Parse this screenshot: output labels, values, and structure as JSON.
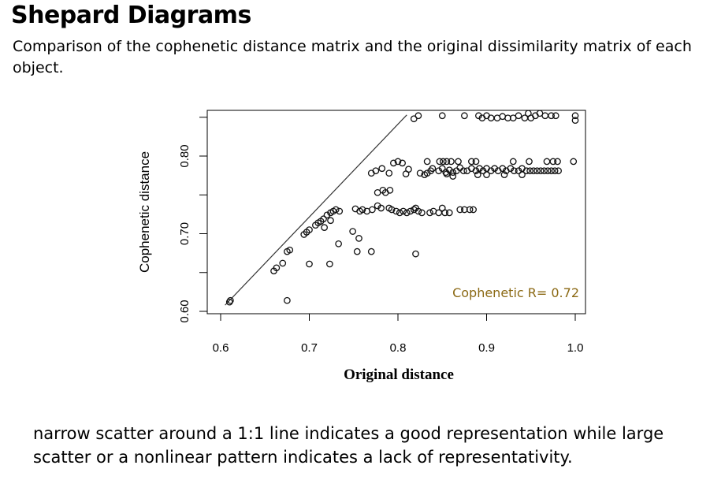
{
  "slide": {
    "title": "Shepard Diagrams",
    "subtitle": "Comparison of the cophenetic distance matrix and the original dissimilarity matrix of each object.",
    "body": "narrow scatter around a 1:1 line indicates a good representation while large scatter or a nonlinear pattern indicates a lack of representativity."
  },
  "chart_data": {
    "type": "scatter",
    "xlabel": "Original distance",
    "ylabel": "Cophenetic distance",
    "xlim": [
      0.6,
      1.0
    ],
    "ylim": [
      0.6,
      0.85
    ],
    "xticks": [
      "0.6",
      "0.7",
      "0.8",
      "0.9",
      "1.0"
    ],
    "yticks": [
      "0.60",
      "0.70",
      "0.80"
    ],
    "annotation": "Cophenetic R= 0.72",
    "annotation_color": "#8B6914",
    "reference_line": {
      "from": [
        0.605,
        0.608
      ],
      "to": [
        0.81,
        0.853
      ]
    },
    "points": [
      {
        "x": 0.61,
        "y": 0.612
      },
      {
        "x": 0.611,
        "y": 0.614
      },
      {
        "x": 0.675,
        "y": 0.614
      },
      {
        "x": 0.66,
        "y": 0.652
      },
      {
        "x": 0.663,
        "y": 0.656
      },
      {
        "x": 0.67,
        "y": 0.662
      },
      {
        "x": 0.675,
        "y": 0.677
      },
      {
        "x": 0.678,
        "y": 0.679
      },
      {
        "x": 0.694,
        "y": 0.699
      },
      {
        "x": 0.697,
        "y": 0.702
      },
      {
        "x": 0.7,
        "y": 0.705
      },
      {
        "x": 0.707,
        "y": 0.711
      },
      {
        "x": 0.71,
        "y": 0.714
      },
      {
        "x": 0.713,
        "y": 0.716
      },
      {
        "x": 0.716,
        "y": 0.719
      },
      {
        "x": 0.72,
        "y": 0.724
      },
      {
        "x": 0.724,
        "y": 0.727
      },
      {
        "x": 0.727,
        "y": 0.729
      },
      {
        "x": 0.73,
        "y": 0.731
      },
      {
        "x": 0.734,
        "y": 0.729
      },
      {
        "x": 0.717,
        "y": 0.708
      },
      {
        "x": 0.724,
        "y": 0.717
      },
      {
        "x": 0.7,
        "y": 0.661
      },
      {
        "x": 0.723,
        "y": 0.661
      },
      {
        "x": 0.733,
        "y": 0.687
      },
      {
        "x": 0.749,
        "y": 0.703
      },
      {
        "x": 0.756,
        "y": 0.694
      },
      {
        "x": 0.754,
        "y": 0.677
      },
      {
        "x": 0.77,
        "y": 0.677
      },
      {
        "x": 0.82,
        "y": 0.674
      },
      {
        "x": 0.76,
        "y": 0.731
      },
      {
        "x": 0.765,
        "y": 0.729
      },
      {
        "x": 0.771,
        "y": 0.731
      },
      {
        "x": 0.777,
        "y": 0.736
      },
      {
        "x": 0.781,
        "y": 0.733
      },
      {
        "x": 0.777,
        "y": 0.753
      },
      {
        "x": 0.783,
        "y": 0.756
      },
      {
        "x": 0.786,
        "y": 0.753
      },
      {
        "x": 0.791,
        "y": 0.756
      },
      {
        "x": 0.77,
        "y": 0.778
      },
      {
        "x": 0.775,
        "y": 0.781
      },
      {
        "x": 0.782,
        "y": 0.784
      },
      {
        "x": 0.79,
        "y": 0.778
      },
      {
        "x": 0.795,
        "y": 0.791
      },
      {
        "x": 0.8,
        "y": 0.793
      },
      {
        "x": 0.805,
        "y": 0.791
      },
      {
        "x": 0.809,
        "y": 0.777
      },
      {
        "x": 0.812,
        "y": 0.783
      },
      {
        "x": 0.825,
        "y": 0.778
      },
      {
        "x": 0.83,
        "y": 0.776
      },
      {
        "x": 0.833,
        "y": 0.778
      },
      {
        "x": 0.837,
        "y": 0.781
      },
      {
        "x": 0.839,
        "y": 0.784
      },
      {
        "x": 0.833,
        "y": 0.793
      },
      {
        "x": 0.847,
        "y": 0.793
      },
      {
        "x": 0.851,
        "y": 0.793
      },
      {
        "x": 0.855,
        "y": 0.793
      },
      {
        "x": 0.86,
        "y": 0.793
      },
      {
        "x": 0.868,
        "y": 0.793
      },
      {
        "x": 0.883,
        "y": 0.793
      },
      {
        "x": 0.888,
        "y": 0.793
      },
      {
        "x": 0.846,
        "y": 0.781
      },
      {
        "x": 0.85,
        "y": 0.784
      },
      {
        "x": 0.854,
        "y": 0.779
      },
      {
        "x": 0.858,
        "y": 0.782
      },
      {
        "x": 0.862,
        "y": 0.779
      },
      {
        "x": 0.866,
        "y": 0.781
      },
      {
        "x": 0.87,
        "y": 0.785
      },
      {
        "x": 0.874,
        "y": 0.781
      },
      {
        "x": 0.855,
        "y": 0.777
      },
      {
        "x": 0.862,
        "y": 0.774
      },
      {
        "x": 0.878,
        "y": 0.781
      },
      {
        "x": 0.883,
        "y": 0.784
      },
      {
        "x": 0.888,
        "y": 0.781
      },
      {
        "x": 0.892,
        "y": 0.784
      },
      {
        "x": 0.896,
        "y": 0.781
      },
      {
        "x": 0.9,
        "y": 0.784
      },
      {
        "x": 0.905,
        "y": 0.781
      },
      {
        "x": 0.909,
        "y": 0.784
      },
      {
        "x": 0.913,
        "y": 0.781
      },
      {
        "x": 0.918,
        "y": 0.784
      },
      {
        "x": 0.922,
        "y": 0.781
      },
      {
        "x": 0.927,
        "y": 0.784
      },
      {
        "x": 0.931,
        "y": 0.781
      },
      {
        "x": 0.936,
        "y": 0.781
      },
      {
        "x": 0.94,
        "y": 0.784
      },
      {
        "x": 0.945,
        "y": 0.781
      },
      {
        "x": 0.949,
        "y": 0.781
      },
      {
        "x": 0.953,
        "y": 0.781
      },
      {
        "x": 0.957,
        "y": 0.781
      },
      {
        "x": 0.961,
        "y": 0.781
      },
      {
        "x": 0.965,
        "y": 0.781
      },
      {
        "x": 0.969,
        "y": 0.781
      },
      {
        "x": 0.973,
        "y": 0.781
      },
      {
        "x": 0.977,
        "y": 0.781
      },
      {
        "x": 0.981,
        "y": 0.781
      },
      {
        "x": 0.9,
        "y": 0.776
      },
      {
        "x": 0.92,
        "y": 0.776
      },
      {
        "x": 0.94,
        "y": 0.776
      },
      {
        "x": 0.89,
        "y": 0.776
      },
      {
        "x": 0.93,
        "y": 0.793
      },
      {
        "x": 0.948,
        "y": 0.793
      },
      {
        "x": 0.968,
        "y": 0.793
      },
      {
        "x": 0.975,
        "y": 0.793
      },
      {
        "x": 0.98,
        "y": 0.793
      },
      {
        "x": 0.998,
        "y": 0.793
      },
      {
        "x": 0.85,
        "y": 0.852
      },
      {
        "x": 0.875,
        "y": 0.852
      },
      {
        "x": 0.891,
        "y": 0.852
      },
      {
        "x": 0.895,
        "y": 0.849
      },
      {
        "x": 0.9,
        "y": 0.852
      },
      {
        "x": 0.905,
        "y": 0.849
      },
      {
        "x": 0.912,
        "y": 0.849
      },
      {
        "x": 0.918,
        "y": 0.851
      },
      {
        "x": 0.924,
        "y": 0.849
      },
      {
        "x": 0.93,
        "y": 0.849
      },
      {
        "x": 0.936,
        "y": 0.852
      },
      {
        "x": 0.943,
        "y": 0.849
      },
      {
        "x": 0.947,
        "y": 0.855
      },
      {
        "x": 0.95,
        "y": 0.849
      },
      {
        "x": 0.955,
        "y": 0.852
      },
      {
        "x": 0.96,
        "y": 0.855
      },
      {
        "x": 0.966,
        "y": 0.852
      },
      {
        "x": 0.973,
        "y": 0.852
      },
      {
        "x": 0.978,
        "y": 0.852
      },
      {
        "x": 1.0,
        "y": 0.852
      },
      {
        "x": 1.0,
        "y": 0.846
      },
      {
        "x": 0.818,
        "y": 0.848
      },
      {
        "x": 0.823,
        "y": 0.852
      },
      {
        "x": 0.752,
        "y": 0.732
      },
      {
        "x": 0.757,
        "y": 0.729
      },
      {
        "x": 0.79,
        "y": 0.733
      },
      {
        "x": 0.793,
        "y": 0.731
      },
      {
        "x": 0.798,
        "y": 0.729
      },
      {
        "x": 0.802,
        "y": 0.727
      },
      {
        "x": 0.806,
        "y": 0.729
      },
      {
        "x": 0.81,
        "y": 0.727
      },
      {
        "x": 0.814,
        "y": 0.729
      },
      {
        "x": 0.818,
        "y": 0.731
      },
      {
        "x": 0.82,
        "y": 0.733
      },
      {
        "x": 0.823,
        "y": 0.729
      },
      {
        "x": 0.827,
        "y": 0.727
      },
      {
        "x": 0.836,
        "y": 0.727
      },
      {
        "x": 0.84,
        "y": 0.729
      },
      {
        "x": 0.846,
        "y": 0.727
      },
      {
        "x": 0.85,
        "y": 0.733
      },
      {
        "x": 0.853,
        "y": 0.727
      },
      {
        "x": 0.858,
        "y": 0.727
      },
      {
        "x": 0.87,
        "y": 0.731
      },
      {
        "x": 0.875,
        "y": 0.731
      },
      {
        "x": 0.881,
        "y": 0.731
      },
      {
        "x": 0.885,
        "y": 0.731
      }
    ]
  }
}
